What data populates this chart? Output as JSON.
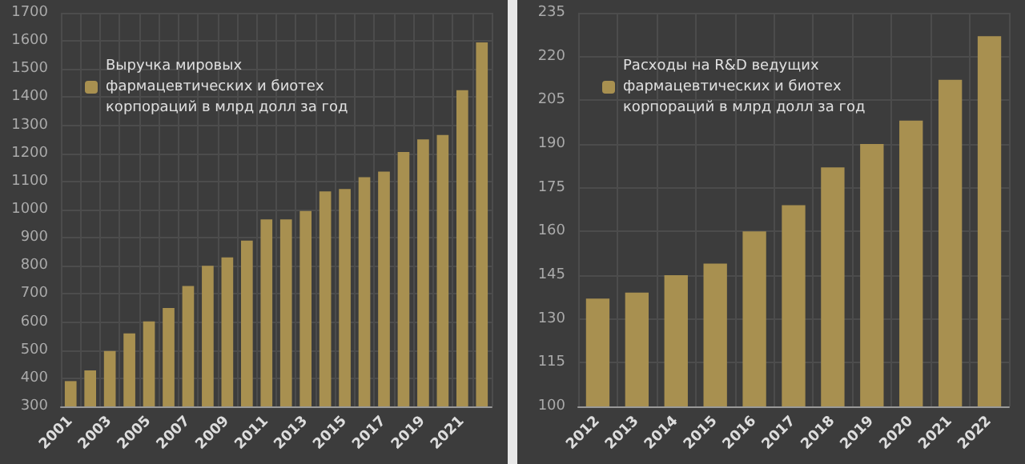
{
  "chart_data": [
    {
      "type": "bar",
      "categories": [
        "2001",
        null,
        "2003",
        null,
        "2005",
        null,
        "2007",
        null,
        "2009",
        null,
        "2011",
        null,
        "2013",
        null,
        "2015",
        null,
        "2017",
        null,
        "2019",
        null,
        "2021",
        null
      ],
      "series": [
        {
          "name": "Выручка мировых фармацевтических и биотех корпораций в млрд долл за год",
          "color": "#a89050",
          "values": [
            390,
            428,
            497,
            560,
            602,
            650,
            728,
            800,
            830,
            890,
            965,
            965,
            995,
            1065,
            1073,
            1115,
            1135,
            1205,
            1250,
            1265,
            1425,
            1595
          ]
        }
      ],
      "ylim": [
        300,
        1700
      ],
      "yticks": [
        300,
        400,
        500,
        600,
        700,
        800,
        900,
        1000,
        1100,
        1200,
        1300,
        1400,
        1500,
        1600,
        1700
      ],
      "grid": true,
      "legend": "top left"
    },
    {
      "type": "bar",
      "categories": [
        "2012",
        "2013",
        "2014",
        "2015",
        "2016",
        "2017",
        "2018",
        "2019",
        "2020",
        "2021",
        "2022"
      ],
      "series": [
        {
          "name": "Расходы на R&D ведущих фармацевтических и биотех корпораций в млрд долл за год",
          "color": "#a89050",
          "values": [
            137,
            139,
            145,
            149,
            160,
            169,
            182,
            190,
            198,
            212,
            227
          ]
        }
      ],
      "ylim": [
        100,
        235
      ],
      "yticks": [
        100,
        115,
        130,
        145,
        160,
        175,
        190,
        205,
        220,
        235
      ],
      "grid": true,
      "legend": "top left"
    }
  ]
}
